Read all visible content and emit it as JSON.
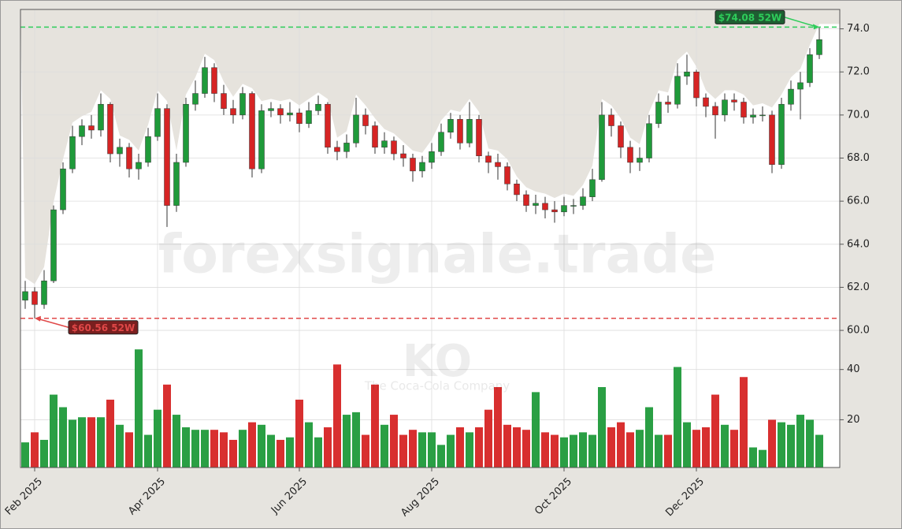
{
  "chart_data": {
    "type": "candlestick",
    "categories": [
      null,
      "Feb 2025",
      null,
      null,
      null,
      null,
      null,
      null,
      null,
      null,
      null,
      null,
      null,
      null,
      "Apr 2025",
      null,
      null,
      null,
      null,
      null,
      null,
      null,
      null,
      null,
      null,
      null,
      null,
      null,
      null,
      "Jun 2025",
      null,
      null,
      null,
      null,
      null,
      null,
      null,
      null,
      null,
      null,
      null,
      null,
      null,
      "Aug 2025",
      null,
      null,
      null,
      null,
      null,
      null,
      null,
      null,
      null,
      null,
      null,
      null,
      null,
      "Oct 2025",
      null,
      null,
      null,
      null,
      null,
      null,
      null,
      null,
      null,
      null,
      null,
      null,
      null,
      "Dec 2025",
      null,
      null,
      null,
      null,
      null,
      null,
      null,
      null,
      null,
      null,
      null,
      null,
      null
    ],
    "open": [
      61.4,
      61.8,
      61.2,
      62.3,
      65.6,
      67.5,
      69.0,
      69.5,
      69.3,
      70.5,
      68.2,
      68.5,
      67.5,
      67.8,
      69.0,
      70.3,
      65.8,
      67.8,
      70.5,
      71.0,
      72.2,
      71.0,
      70.3,
      70.0,
      71.0,
      67.5,
      70.2,
      70.3,
      70.0,
      70.1,
      69.6,
      70.2,
      70.5,
      68.5,
      68.3,
      68.7,
      70.0,
      69.5,
      68.5,
      68.8,
      68.2,
      68.0,
      67.4,
      67.8,
      68.3,
      69.2,
      69.8,
      68.7,
      69.8,
      68.1,
      67.8,
      67.6,
      66.8,
      66.3,
      65.8,
      65.9,
      65.6,
      65.5,
      65.8,
      65.8,
      66.2,
      67.0,
      70.0,
      69.5,
      68.5,
      67.8,
      68.0,
      69.6,
      70.6,
      70.5,
      71.8,
      72.0,
      70.8,
      70.4,
      70.0,
      70.7,
      70.6,
      69.9,
      70.0,
      70.0,
      67.7,
      70.5,
      71.2,
      71.5,
      72.8
    ],
    "high": [
      62.3,
      62.0,
      62.8,
      65.8,
      67.8,
      69.5,
      69.8,
      70.0,
      71.0,
      70.6,
      68.9,
      68.7,
      68.2,
      69.4,
      71.0,
      70.5,
      68.2,
      70.8,
      71.6,
      72.7,
      72.4,
      71.4,
      70.7,
      71.3,
      71.1,
      70.5,
      70.6,
      70.5,
      70.6,
      70.3,
      70.6,
      70.9,
      70.6,
      68.8,
      69.1,
      70.8,
      70.3,
      69.7,
      69.2,
      69.0,
      68.6,
      68.2,
      68.1,
      68.7,
      69.6,
      70.1,
      70.0,
      70.6,
      70.0,
      68.3,
      68.2,
      67.8,
      67.0,
      66.5,
      66.3,
      66.2,
      66.0,
      66.2,
      66.1,
      66.6,
      67.5,
      70.6,
      70.3,
      69.7,
      68.8,
      68.5,
      70.0,
      71.0,
      70.9,
      72.4,
      72.8,
      72.1,
      71.0,
      70.6,
      71.0,
      71.0,
      70.8,
      70.3,
      70.4,
      70.2,
      70.8,
      71.6,
      72.0,
      73.1,
      74.08
    ],
    "low": [
      61.0,
      60.56,
      61.0,
      62.2,
      65.4,
      67.3,
      68.6,
      68.9,
      69.0,
      67.8,
      67.6,
      67.1,
      67.0,
      67.6,
      68.8,
      64.8,
      65.5,
      67.6,
      70.2,
      70.8,
      70.6,
      70.0,
      69.6,
      69.8,
      67.1,
      67.3,
      69.9,
      69.6,
      69.7,
      69.2,
      69.4,
      70.0,
      68.2,
      67.9,
      68.0,
      68.5,
      69.1,
      68.2,
      68.2,
      67.9,
      67.6,
      66.9,
      67.1,
      67.5,
      68.1,
      68.9,
      68.4,
      68.5,
      67.8,
      67.3,
      67.0,
      66.5,
      66.0,
      65.5,
      65.4,
      65.2,
      65.0,
      65.3,
      65.4,
      65.6,
      66.0,
      66.9,
      69.0,
      68.0,
      67.3,
      67.4,
      67.8,
      69.4,
      70.1,
      70.3,
      71.4,
      70.4,
      69.9,
      68.9,
      69.7,
      70.2,
      69.6,
      69.6,
      69.7,
      67.3,
      67.5,
      70.2,
      69.8,
      71.3,
      72.6
    ],
    "close": [
      61.8,
      61.2,
      62.3,
      65.6,
      67.5,
      69.0,
      69.5,
      69.3,
      70.5,
      68.2,
      68.5,
      67.5,
      67.8,
      69.0,
      70.3,
      65.8,
      67.8,
      70.5,
      71.0,
      72.2,
      71.0,
      70.3,
      70.0,
      71.0,
      67.5,
      70.2,
      70.3,
      70.0,
      70.1,
      69.6,
      70.2,
      70.5,
      68.5,
      68.3,
      68.7,
      70.0,
      69.5,
      68.5,
      68.8,
      68.2,
      68.0,
      67.4,
      67.8,
      68.3,
      69.2,
      69.8,
      68.7,
      69.8,
      68.1,
      67.8,
      67.6,
      66.8,
      66.3,
      65.8,
      65.9,
      65.6,
      65.5,
      65.8,
      65.8,
      66.2,
      67.0,
      70.0,
      69.5,
      68.5,
      67.8,
      68.0,
      69.6,
      70.6,
      70.5,
      71.8,
      72.0,
      70.8,
      70.4,
      70.0,
      70.7,
      70.6,
      69.9,
      70.0,
      70.0,
      67.7,
      70.5,
      71.2,
      71.5,
      72.8,
      73.5
    ],
    "volume": [
      11,
      15,
      12,
      30,
      25,
      20,
      21,
      21,
      21,
      28,
      18,
      15,
      48,
      14,
      24,
      34,
      22,
      17,
      16,
      16,
      16,
      15,
      12,
      16,
      19,
      18,
      14,
      12,
      13,
      28,
      19,
      13,
      17,
      42,
      22,
      23,
      14,
      34,
      18,
      22,
      14,
      16,
      15,
      15,
      10,
      14,
      17,
      15,
      17,
      24,
      33,
      18,
      17,
      16,
      31,
      15,
      14,
      13,
      14,
      15,
      14,
      33,
      17,
      19,
      15,
      16,
      25,
      14,
      14,
      41,
      19,
      16,
      17,
      30,
      18,
      16,
      37,
      9,
      8,
      20,
      19,
      18,
      22,
      20,
      14
    ],
    "up_color": "#1f9a3a",
    "down_color": "#d62424",
    "ylim": [
      59.6,
      74.9
    ],
    "yticks": [
      {
        "value": 60,
        "label": "60.0"
      },
      {
        "value": 62,
        "label": "62.0"
      },
      {
        "value": 64,
        "label": "64.0"
      },
      {
        "value": 66,
        "label": "66.0"
      },
      {
        "value": 68,
        "label": "68.0"
      },
      {
        "value": 70,
        "label": "70.0"
      },
      {
        "value": 72,
        "label": "72.0"
      },
      {
        "value": 74,
        "label": "74.0"
      }
    ],
    "volume_ylim": [
      1,
      49
    ],
    "volume_yticks": [
      20,
      40
    ],
    "grid": true,
    "annotations": [
      {
        "text": "$74.08 52W",
        "value": 74.08,
        "color": "#2ecc5a"
      },
      {
        "text": "$60.56 52W",
        "value": 60.56,
        "color": "#e04848"
      }
    ],
    "watermark": "forexsignale.trade",
    "ticker": "KO",
    "company": "The Coca-Cola Company"
  }
}
